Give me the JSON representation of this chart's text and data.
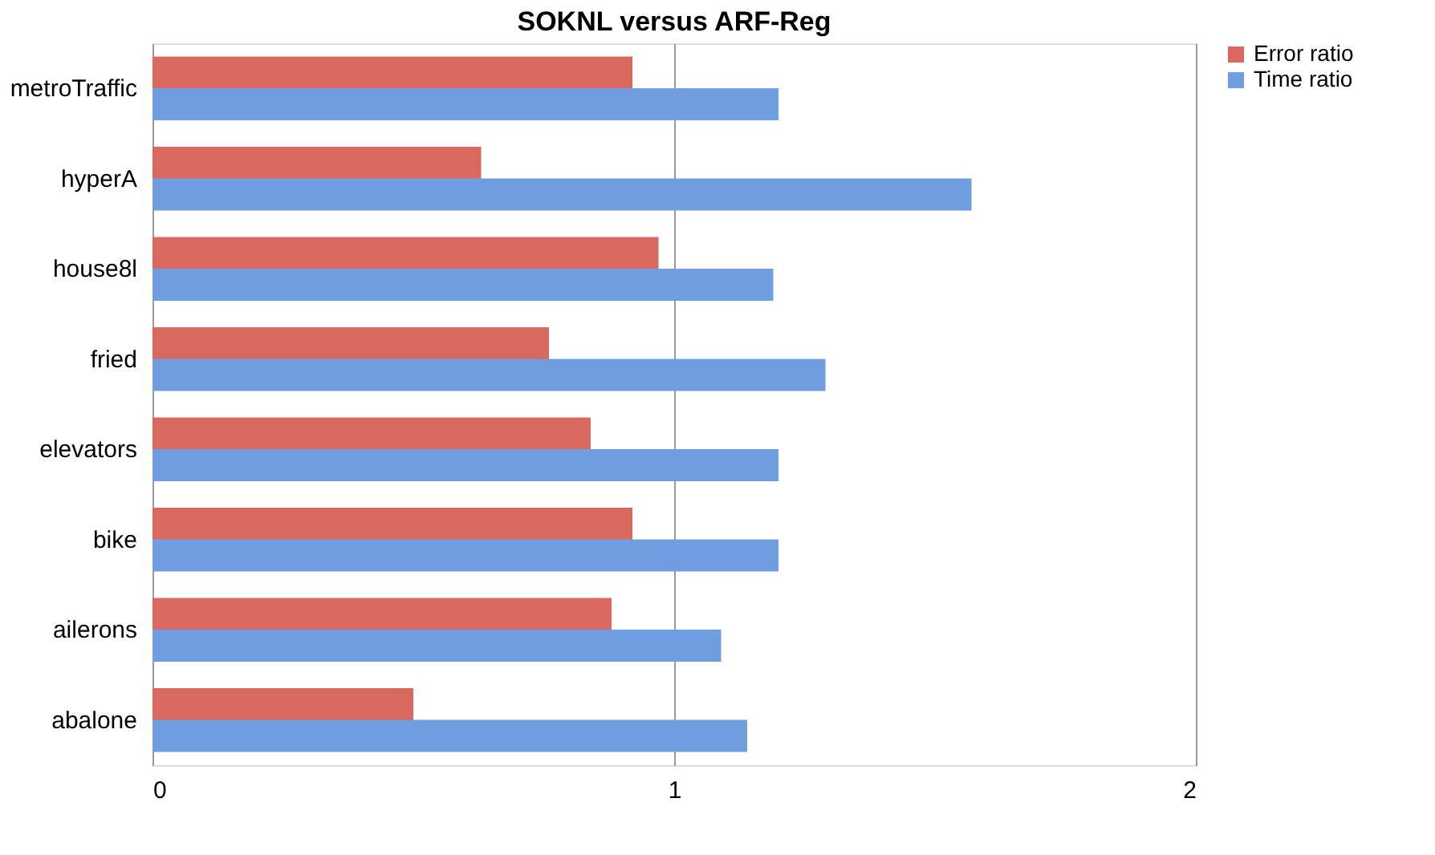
{
  "chart_data": {
    "type": "bar",
    "orientation": "horizontal",
    "title": "SOKNL versus ARF-Reg",
    "categories": [
      "metroTraffic",
      "hyperA",
      "house8l",
      "fried",
      "elevators",
      "bike",
      "ailerons",
      "abalone"
    ],
    "series": [
      {
        "name": "Error ratio",
        "color": "#d9685e",
        "values": [
          0.92,
          0.63,
          0.97,
          0.76,
          0.84,
          0.92,
          0.88,
          0.5
        ]
      },
      {
        "name": "Time ratio",
        "color": "#6f9fe0",
        "values": [
          1.2,
          1.57,
          1.19,
          1.29,
          1.2,
          1.2,
          1.09,
          1.14
        ]
      }
    ],
    "xlim": [
      0,
      2
    ],
    "xticks": [
      0,
      1,
      2
    ],
    "grid": "x",
    "legend": "right"
  }
}
